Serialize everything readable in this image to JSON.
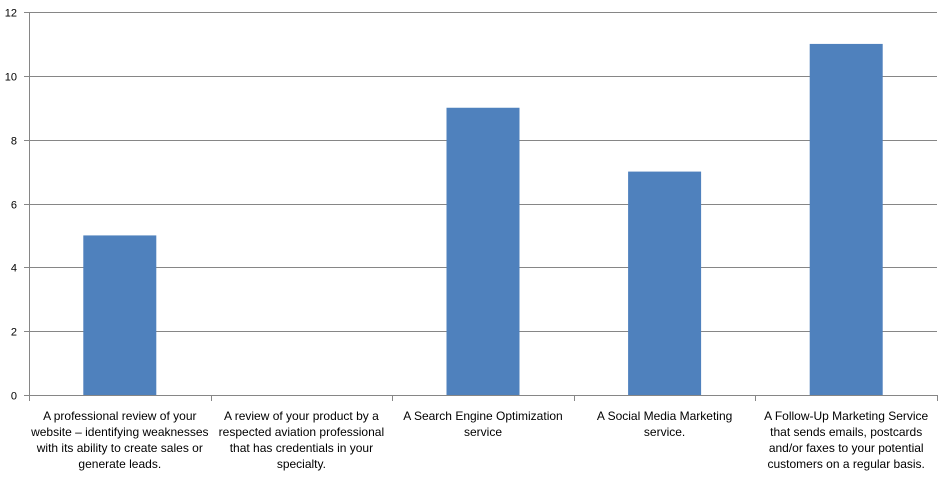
{
  "chart_data": {
    "type": "bar",
    "title": "",
    "xlabel": "",
    "ylabel": "",
    "ylim": [
      0,
      12
    ],
    "yticks": [
      0,
      2,
      4,
      6,
      8,
      10,
      12
    ],
    "grid": true,
    "legend": "none",
    "bar_color": "#4F81BD",
    "categories": [
      "A professional review of your website – identifying weaknesses with its ability to create sales or generate leads.",
      "A review of your product by a respected aviation professional that has credentials in your specialty.",
      "A Search Engine Optimization service",
      "A Social Media Marketing service.",
      "A Follow-Up Marketing Service that sends emails, postcards and/or faxes to your potential customers on a regular basis."
    ],
    "category_lines": [
      [
        "A professional review of your",
        "website – identifying weaknesses",
        "with its ability to create sales or",
        "generate leads."
      ],
      [
        "A review of your product by a",
        "respected aviation professional",
        "that has credentials in your",
        "specialty."
      ],
      [
        "A Search Engine Optimization",
        "service"
      ],
      [
        "A Social Media Marketing",
        "service."
      ],
      [
        "A Follow-Up Marketing Service",
        "that sends emails, postcards",
        "and/or faxes to your potential",
        "customers on a regular basis."
      ]
    ],
    "values": [
      5,
      0,
      9,
      7,
      11
    ]
  }
}
